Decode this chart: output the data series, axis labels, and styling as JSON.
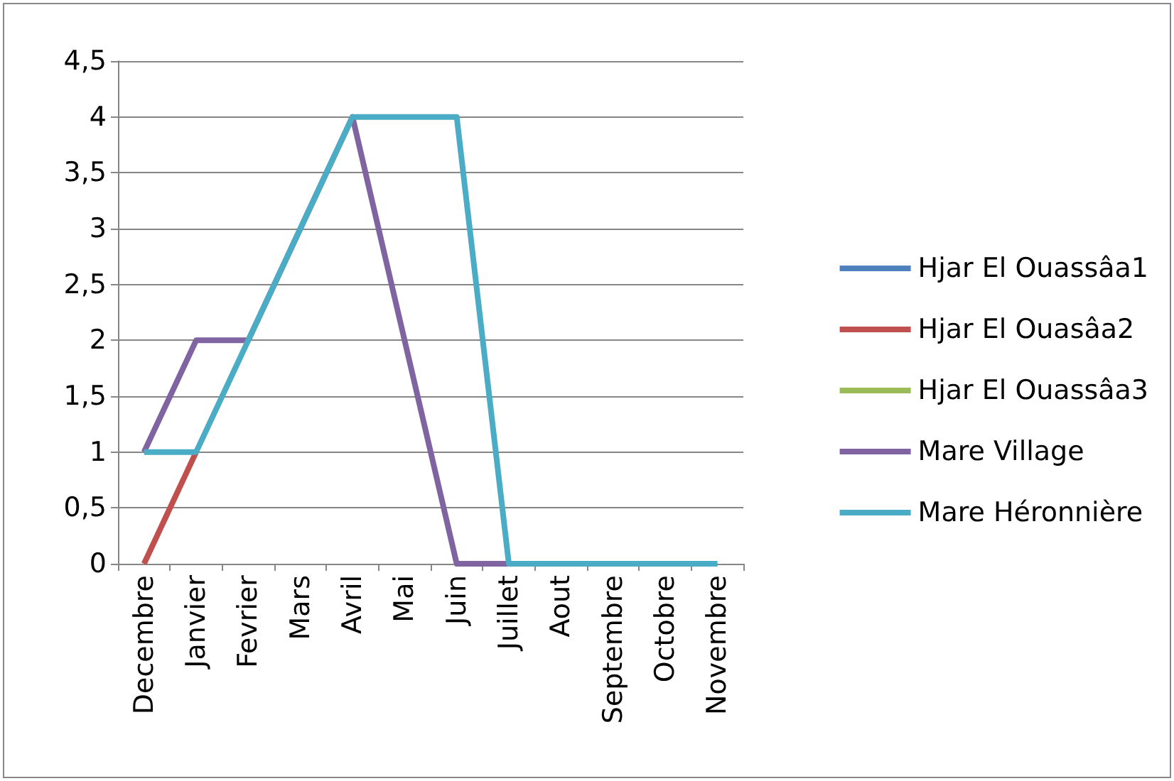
{
  "chart_data": {
    "type": "line",
    "categories": [
      "Decembre",
      "Janvier",
      "Fevrier",
      "Mars",
      "Avril",
      "Mai",
      "Juin",
      "Juillet",
      "Aout",
      "Septembre",
      "Octobre",
      "Novembre"
    ],
    "series": [
      {
        "name": "Hjar El Ouassâa1",
        "color": "#4f81bd",
        "values": [
          null,
          null,
          null,
          null,
          null,
          null,
          null,
          null,
          null,
          null,
          null,
          null
        ]
      },
      {
        "name": "Hjar El Ouasâa2",
        "color": "#c0504d",
        "values": [
          0,
          1,
          null,
          null,
          null,
          null,
          null,
          null,
          null,
          null,
          null,
          null
        ]
      },
      {
        "name": "Hjar El Ouassâa3",
        "color": "#9bbb59",
        "values": [
          null,
          null,
          null,
          null,
          null,
          null,
          null,
          null,
          null,
          null,
          null,
          null
        ]
      },
      {
        "name": "Mare Village",
        "color": "#8064a2",
        "values": [
          1,
          2,
          2,
          3,
          4,
          2,
          0,
          0,
          0,
          0,
          0,
          0
        ]
      },
      {
        "name": "Mare Héronnière",
        "color": "#4bacc6",
        "values": [
          1,
          1,
          2,
          3,
          4,
          4,
          4,
          0,
          0,
          0,
          0,
          0
        ]
      }
    ],
    "ylim": [
      0,
      4.5
    ],
    "yticks": [
      0,
      {
        "value": 0.5,
        "label": "0,5"
      },
      1,
      {
        "value": 1.5,
        "label": "1,5"
      },
      2,
      {
        "value": 2.5,
        "label": "2,5"
      },
      3,
      {
        "value": 3.5,
        "label": "3,5"
      },
      4,
      {
        "value": 4.5,
        "label": "4,5"
      }
    ],
    "grid": "y",
    "legend": "right",
    "marker": "none",
    "line_style": "solid"
  }
}
